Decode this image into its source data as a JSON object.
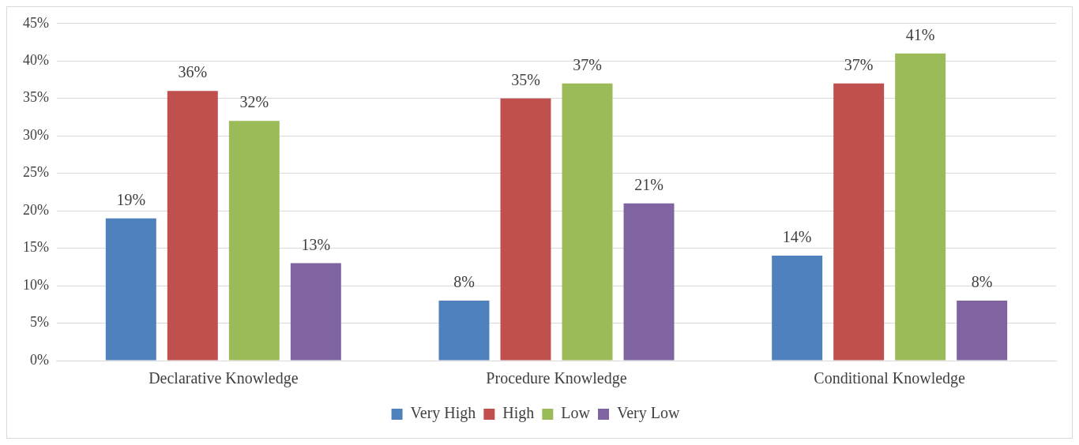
{
  "chart_data": {
    "type": "bar",
    "categories": [
      "Declarative Knowledge",
      "Procedure Knowledge",
      "Conditional Knowledge"
    ],
    "series": [
      {
        "name": "Very High",
        "color": "#4f81bd",
        "values": [
          19,
          8,
          14
        ],
        "value_labels": [
          "19%",
          "8%",
          "14%"
        ]
      },
      {
        "name": "High",
        "color": "#c0504d",
        "values": [
          36,
          35,
          37
        ],
        "value_labels": [
          "36%",
          "35%",
          "37%"
        ]
      },
      {
        "name": "Low",
        "color": "#9bbb59",
        "values": [
          32,
          37,
          41
        ],
        "value_labels": [
          "32%",
          "37%",
          "41%"
        ]
      },
      {
        "name": "Very Low",
        "color": "#8064a2",
        "values": [
          13,
          21,
          8
        ],
        "value_labels": [
          "13%",
          "21%",
          "8%"
        ]
      }
    ],
    "ylim": [
      0,
      45
    ],
    "yticks": [
      {
        "value": 0,
        "label": "0%"
      },
      {
        "value": 5,
        "label": "5%"
      },
      {
        "value": 10,
        "label": "10%"
      },
      {
        "value": 15,
        "label": "15%"
      },
      {
        "value": 20,
        "label": "20%"
      },
      {
        "value": 25,
        "label": "25%"
      },
      {
        "value": 30,
        "label": "30%"
      },
      {
        "value": 35,
        "label": "35%"
      },
      {
        "value": 40,
        "label": "40%"
      },
      {
        "value": 45,
        "label": "45%"
      }
    ],
    "grid": "y",
    "legend": "bottom"
  }
}
